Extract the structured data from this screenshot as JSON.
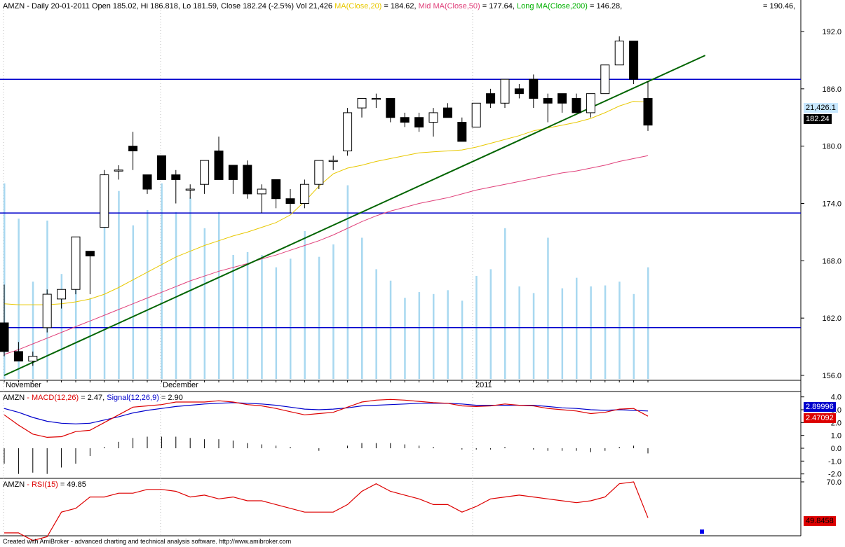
{
  "header": {
    "ticker": "AMZN",
    "summary": " - Daily 20-01-2011 Open 185.02, Hi 186.818, Lo 181.59, Close 182.24 (-2.5%) Vol 21,426",
    "ma20_label": "MA(Close,20)",
    "ma20_value": " = 184.62,",
    "ma50_label": "Mid MA(Close,50)",
    "ma50_value": " = 177.64,",
    "ma200_label": "Long MA(Close,200)",
    "ma200_value": " = 146.28,",
    "extra_value": "= 190.46,"
  },
  "macd_header": {
    "ticker": "AMZN",
    "macd_label": " - MACD(12,26)",
    "macd_value": " = 2.47, ",
    "signal_label": "Signal(12,26,9)",
    "signal_value": " = 2.90"
  },
  "rsi_header": {
    "ticker": "AMZN",
    "rsi_label": " - RSI(15)",
    "rsi_value": " = 49.85"
  },
  "tags": {
    "volume": "21,426.1",
    "close": "182.24",
    "signal": "2.89996",
    "macd": "2.47092",
    "rsi": "49.8458"
  },
  "months": [
    "November",
    "December",
    "2011"
  ],
  "footer": "Created with AmiBroker - advanced charting and technical analysis software. http://www.amibroker.com",
  "colors": {
    "ma20": "#e8c800",
    "ma50": "#e0407a",
    "ma200": "#00b000",
    "hline": "#0000cc",
    "trend": "#006400",
    "volume": "#a8d8f0",
    "macd": "#dd0000",
    "signal": "#0000cc",
    "rsi": "#dd0000"
  },
  "chart_data": [
    {
      "type": "candlestick",
      "title": "AMZN - Daily",
      "y_ticks": [
        192.0,
        186.0,
        180.0,
        174.0,
        168.0,
        162.0,
        156.0
      ],
      "ylim": [
        155.6,
        193.5
      ],
      "horizontal_lines": [
        187.0,
        173.0,
        161.0
      ],
      "trendline": {
        "start_bar": 0,
        "start_value": 156.0,
        "end_bar": 49,
        "end_value": 189.5
      },
      "candles": [
        {
          "o": 161.5,
          "h": 165.5,
          "l": 158.0,
          "c": 158.5
        },
        {
          "o": 158.5,
          "h": 159.5,
          "l": 157.5,
          "c": 157.5
        },
        {
          "o": 157.5,
          "h": 158.5,
          "l": 157.0,
          "c": 158.0
        },
        {
          "o": 161.0,
          "h": 165.0,
          "l": 160.5,
          "c": 164.5
        },
        {
          "o": 164.0,
          "h": 165.0,
          "l": 163.0,
          "c": 165.0
        },
        {
          "o": 165.0,
          "h": 170.5,
          "l": 164.5,
          "c": 170.5
        },
        {
          "o": 169.0,
          "h": 169.0,
          "l": 164.5,
          "c": 168.5
        },
        {
          "o": 171.5,
          "h": 177.5,
          "l": 171.5,
          "c": 177.0
        },
        {
          "o": 177.5,
          "h": 178.0,
          "l": 176.5,
          "c": 177.5
        },
        {
          "o": 180.0,
          "h": 181.5,
          "l": 177.5,
          "c": 179.5
        },
        {
          "o": 177.0,
          "h": 177.0,
          "l": 175.0,
          "c": 175.5
        },
        {
          "o": 179.0,
          "h": 179.0,
          "l": 176.5,
          "c": 176.5
        },
        {
          "o": 177.0,
          "h": 177.5,
          "l": 174.0,
          "c": 176.5
        },
        {
          "o": 175.5,
          "h": 176.0,
          "l": 174.5,
          "c": 175.5
        },
        {
          "o": 176.0,
          "h": 178.5,
          "l": 175.0,
          "c": 178.5
        },
        {
          "o": 179.5,
          "h": 181.0,
          "l": 176.5,
          "c": 176.5
        },
        {
          "o": 178.0,
          "h": 178.0,
          "l": 175.0,
          "c": 176.5
        },
        {
          "o": 178.0,
          "h": 178.5,
          "l": 174.5,
          "c": 175.0
        },
        {
          "o": 175.0,
          "h": 176.0,
          "l": 173.0,
          "c": 175.5
        },
        {
          "o": 176.5,
          "h": 176.5,
          "l": 173.5,
          "c": 174.5
        },
        {
          "o": 174.5,
          "h": 175.5,
          "l": 173.0,
          "c": 174.0
        },
        {
          "o": 174.0,
          "h": 176.5,
          "l": 173.5,
          "c": 176.0
        },
        {
          "o": 176.0,
          "h": 178.5,
          "l": 175.5,
          "c": 178.5
        },
        {
          "o": 178.5,
          "h": 179.0,
          "l": 177.5,
          "c": 178.5
        },
        {
          "o": 179.5,
          "h": 184.0,
          "l": 179.0,
          "c": 183.5
        },
        {
          "o": 184.0,
          "h": 185.0,
          "l": 183.0,
          "c": 185.0
        },
        {
          "o": 185.0,
          "h": 185.5,
          "l": 184.0,
          "c": 185.0
        },
        {
          "o": 185.0,
          "h": 185.0,
          "l": 182.5,
          "c": 183.0
        },
        {
          "o": 183.0,
          "h": 183.5,
          "l": 182.0,
          "c": 182.5
        },
        {
          "o": 183.0,
          "h": 183.5,
          "l": 181.5,
          "c": 182.0
        },
        {
          "o": 182.5,
          "h": 184.0,
          "l": 181.0,
          "c": 183.5
        },
        {
          "o": 184.0,
          "h": 184.5,
          "l": 183.0,
          "c": 183.0
        },
        {
          "o": 182.5,
          "h": 183.0,
          "l": 180.5,
          "c": 180.5
        },
        {
          "o": 182.0,
          "h": 184.5,
          "l": 182.0,
          "c": 184.5
        },
        {
          "o": 185.5,
          "h": 186.0,
          "l": 184.0,
          "c": 184.5
        },
        {
          "o": 184.5,
          "h": 187.0,
          "l": 184.0,
          "c": 187.0
        },
        {
          "o": 186.0,
          "h": 186.5,
          "l": 185.0,
          "c": 185.5
        },
        {
          "o": 187.0,
          "h": 187.5,
          "l": 184.0,
          "c": 185.0
        },
        {
          "o": 185.0,
          "h": 185.5,
          "l": 182.5,
          "c": 184.5
        },
        {
          "o": 185.5,
          "h": 185.5,
          "l": 183.5,
          "c": 184.5
        },
        {
          "o": 185.0,
          "h": 185.5,
          "l": 183.5,
          "c": 183.5
        },
        {
          "o": 183.5,
          "h": 185.5,
          "l": 183.0,
          "c": 185.5
        },
        {
          "o": 185.5,
          "h": 188.5,
          "l": 185.5,
          "c": 188.5
        },
        {
          "o": 188.5,
          "h": 191.5,
          "l": 188.5,
          "c": 191.0
        },
        {
          "o": 191.0,
          "h": 191.0,
          "l": 186.5,
          "c": 187.0
        },
        {
          "o": 185.0,
          "h": 186.8,
          "l": 181.6,
          "c": 182.2
        }
      ],
      "ma20": [
        163.5,
        163.4,
        163.4,
        163.4,
        163.5,
        163.7,
        164.0,
        164.5,
        165.2,
        166.0,
        166.8,
        167.6,
        168.4,
        169.0,
        169.6,
        170.1,
        170.6,
        171.0,
        171.5,
        172.0,
        172.8,
        174.2,
        175.8,
        177.1,
        177.7,
        178.0,
        178.4,
        178.7,
        179.0,
        179.3,
        179.4,
        179.5,
        179.6,
        179.9,
        180.3,
        180.7,
        181.1,
        181.6,
        181.9,
        182.2,
        182.5,
        182.9,
        183.5,
        184.2,
        184.7,
        184.6
      ],
      "ma50": [
        158.2,
        158.7,
        159.3,
        159.9,
        160.5,
        161.1,
        161.7,
        162.3,
        162.9,
        163.5,
        164.1,
        164.7,
        165.3,
        165.9,
        166.4,
        166.9,
        167.3,
        167.7,
        168.2,
        168.6,
        169.1,
        169.6,
        170.1,
        170.7,
        171.4,
        172.1,
        172.7,
        173.2,
        173.6,
        174.0,
        174.3,
        174.6,
        175.0,
        175.4,
        175.7,
        176.0,
        176.3,
        176.6,
        176.9,
        177.2,
        177.4,
        177.7,
        178.0,
        178.4,
        178.7,
        179.0
      ],
      "volume": [
        20500,
        16800,
        10200,
        16600,
        11000,
        12400,
        8500,
        18900,
        19700,
        16100,
        17700,
        20500,
        17500,
        19000,
        15800,
        17500,
        13000,
        13300,
        13000,
        11700,
        12600,
        15500,
        12800,
        14100,
        20300,
        14800,
        11500,
        10300,
        8500,
        9100,
        8900,
        9300,
        8200,
        10800,
        11500,
        15800,
        9700,
        9000,
        14800,
        9500,
        10600,
        9700,
        9800,
        10200,
        8900,
        11700
      ]
    },
    {
      "type": "line",
      "title": "AMZN - MACD(12,26)",
      "y_ticks": [
        4.0,
        3.0,
        2.0,
        1.0,
        0.0,
        -1.0,
        -2.0
      ],
      "ylim": [
        -2.6,
        4.6
      ],
      "series": [
        {
          "name": "MACD(12,26)",
          "values": [
            2.6,
            1.8,
            1.1,
            0.85,
            0.9,
            1.3,
            1.4,
            2.0,
            2.6,
            3.2,
            3.3,
            3.4,
            3.6,
            3.6,
            3.6,
            3.7,
            3.6,
            3.4,
            3.3,
            3.1,
            2.85,
            2.6,
            2.7,
            2.8,
            3.2,
            3.6,
            3.75,
            3.8,
            3.75,
            3.65,
            3.55,
            3.5,
            3.3,
            3.25,
            3.3,
            3.45,
            3.35,
            3.3,
            3.1,
            3.0,
            2.9,
            2.7,
            2.8,
            3.05,
            3.1,
            2.5
          ]
        },
        {
          "name": "Signal(12,26,9)",
          "values": [
            3.1,
            2.8,
            2.4,
            2.1,
            1.95,
            1.9,
            1.95,
            2.2,
            2.45,
            2.75,
            2.95,
            3.1,
            3.25,
            3.35,
            3.45,
            3.5,
            3.55,
            3.5,
            3.45,
            3.35,
            3.2,
            3.05,
            3.0,
            3.05,
            3.15,
            3.3,
            3.35,
            3.4,
            3.45,
            3.5,
            3.5,
            3.5,
            3.45,
            3.35,
            3.35,
            3.35,
            3.35,
            3.35,
            3.25,
            3.15,
            3.1,
            3.0,
            2.95,
            3.0,
            2.95,
            2.9
          ]
        }
      ],
      "histogram": [
        -1.2,
        -2.0,
        -1.9,
        -2.0,
        -1.5,
        -1.2,
        -0.6,
        0.1,
        0.5,
        0.8,
        0.9,
        0.9,
        0.9,
        0.8,
        0.7,
        0.7,
        0.6,
        0.4,
        0.3,
        0.2,
        0.1,
        0.0,
        -0.2,
        0.0,
        0.2,
        0.4,
        0.4,
        0.4,
        0.3,
        0.2,
        0.1,
        0.0,
        -0.1,
        -0.1,
        -0.1,
        0.1,
        0.0,
        -0.1,
        -0.2,
        -0.2,
        -0.2,
        -0.3,
        -0.2,
        0.1,
        0.2,
        -0.4
      ]
    },
    {
      "type": "line",
      "title": "AMZN - RSI(15)",
      "y_ticks": [
        70.0
      ],
      "ylim": [
        38,
        72
      ],
      "series": [
        {
          "name": "RSI(15)",
          "values": [
            43,
            43,
            39,
            41,
            54,
            56,
            62,
            62,
            64,
            64,
            66,
            66,
            65,
            62,
            63,
            61,
            62,
            60,
            60,
            58,
            56,
            54,
            54,
            54,
            58,
            65,
            69,
            65,
            63,
            61,
            58,
            58,
            54,
            57,
            61,
            62,
            63,
            62,
            61,
            60,
            59,
            60,
            62,
            69,
            70,
            51
          ]
        }
      ]
    }
  ]
}
